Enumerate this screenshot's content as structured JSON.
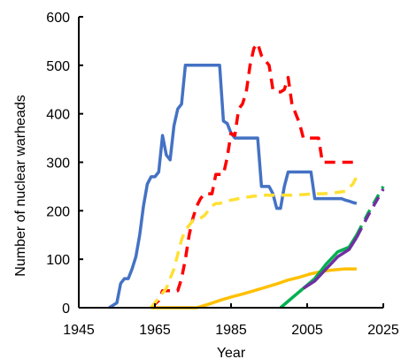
{
  "chart_data": {
    "type": "line",
    "title": "",
    "xlabel": "Year",
    "ylabel": "Number of  nuclear warheads",
    "xlim": [
      1945,
      2025
    ],
    "ylim": [
      0,
      600
    ],
    "xticks": [
      1945,
      1965,
      1985,
      2005,
      2025
    ],
    "yticks": [
      0,
      100,
      200,
      300,
      400,
      500,
      600
    ],
    "grid": false,
    "legend": "none",
    "series": [
      {
        "color": "#4472c4",
        "dash": "solid",
        "x": [
          1953,
          1955,
          1956,
          1957,
          1958,
          1959,
          1960,
          1961,
          1962,
          1963,
          1964,
          1965,
          1966,
          1967,
          1968,
          1969,
          1970,
          1971,
          1972,
          1973,
          1974,
          1975,
          1976,
          1977,
          1978,
          1979,
          1980,
          1981,
          1982,
          1983,
          1984,
          1985,
          1986,
          1987,
          1988,
          1989,
          1990,
          1991,
          1992,
          1993,
          1994,
          1995,
          1996,
          1997,
          1998,
          1999,
          2000,
          2001,
          2002,
          2003,
          2004,
          2005,
          2006,
          2007,
          2008,
          2009,
          2010,
          2011,
          2012,
          2013,
          2014,
          2015,
          2016,
          2017,
          2018
        ],
        "y": [
          0,
          10,
          50,
          60,
          60,
          80,
          105,
          150,
          210,
          255,
          270,
          270,
          280,
          355,
          315,
          305,
          375,
          410,
          420,
          500,
          500,
          500,
          500,
          500,
          500,
          500,
          500,
          500,
          500,
          385,
          380,
          360,
          350,
          350,
          350,
          350,
          350,
          350,
          350,
          250,
          250,
          250,
          235,
          205,
          205,
          250,
          280,
          280,
          280,
          280,
          280,
          280,
          280,
          225,
          225,
          225,
          225,
          225,
          225,
          225,
          225,
          222,
          220,
          217,
          215
        ]
      },
      {
        "color": "#ff0000",
        "dash": "dashed",
        "x": [
          1964,
          1966,
          1967,
          1968,
          1969,
          1970,
          1971,
          1972,
          1973,
          1974,
          1975,
          1976,
          1977,
          1978,
          1979,
          1980,
          1981,
          1982,
          1983,
          1984,
          1985,
          1986,
          1987,
          1988,
          1989,
          1990,
          1991,
          1992,
          1993,
          1994,
          1995,
          1996,
          1997,
          1998,
          1999,
          2000,
          2001,
          2002,
          2003,
          2004,
          2005,
          2006,
          2007,
          2008,
          2009,
          2010,
          2011,
          2012,
          2013,
          2014,
          2015,
          2016,
          2017,
          2018
        ],
        "y": [
          0,
          15,
          35,
          35,
          35,
          35,
          35,
          60,
          100,
          150,
          185,
          210,
          225,
          235,
          235,
          235,
          275,
          275,
          275,
          310,
          360,
          355,
          410,
          420,
          445,
          500,
          535,
          545,
          520,
          510,
          500,
          450,
          445,
          445,
          450,
          475,
          420,
          400,
          380,
          350,
          350,
          350,
          350,
          350,
          300,
          300,
          300,
          300,
          300,
          300,
          300,
          300,
          300,
          300
        ]
      },
      {
        "color": "#ffe033",
        "dash": "dashed",
        "x": [
          1964,
          1966,
          1968,
          1969,
          1970,
          1971,
          1972,
          1973,
          1974,
          1975,
          1976,
          1977,
          1978,
          1979,
          1980,
          1981,
          1982,
          1983,
          1985,
          1987,
          1989,
          1991,
          1993,
          1995,
          1997,
          1999,
          2001,
          2003,
          2005,
          2007,
          2009,
          2011,
          2013,
          2015,
          2017,
          2018
        ],
        "y": [
          0,
          20,
          40,
          60,
          80,
          110,
          140,
          160,
          170,
          180,
          180,
          185,
          190,
          200,
          210,
          215,
          215,
          218,
          222,
          225,
          228,
          230,
          232,
          232,
          232,
          232,
          232,
          233,
          234,
          235,
          235,
          236,
          238,
          240,
          255,
          270
        ]
      },
      {
        "color": "#ffc000",
        "dash": "solid",
        "x": [
          1964,
          1967,
          1970,
          1973,
          1976,
          1979,
          1982,
          1985,
          1988,
          1991,
          1994,
          1997,
          2000,
          2003,
          2006,
          2009,
          2012,
          2015,
          2018
        ],
        "y": [
          0,
          0,
          0,
          0,
          0,
          7,
          15,
          22,
          28,
          35,
          42,
          49,
          57,
          63,
          70,
          75,
          78,
          80,
          80
        ]
      },
      {
        "color": "#00b050",
        "dash": "solid",
        "x": [
          1998,
          2001,
          2004,
          2007,
          2010,
          2013,
          2016,
          2018
        ],
        "y": [
          0,
          20,
          40,
          60,
          90,
          115,
          125,
          150
        ]
      },
      {
        "color": "#00b050",
        "dash": "dashed",
        "x": [
          2018,
          2021,
          2025
        ],
        "y": [
          150,
          195,
          250
        ]
      },
      {
        "color": "#7030a0",
        "dash": "solid",
        "x": [
          2004,
          2007,
          2010,
          2013,
          2016,
          2018
        ],
        "y": [
          40,
          55,
          80,
          105,
          120,
          145
        ]
      },
      {
        "color": "#7030a0",
        "dash": "dashed",
        "x": [
          2018,
          2021,
          2025
        ],
        "y": [
          145,
          190,
          245
        ]
      }
    ]
  }
}
